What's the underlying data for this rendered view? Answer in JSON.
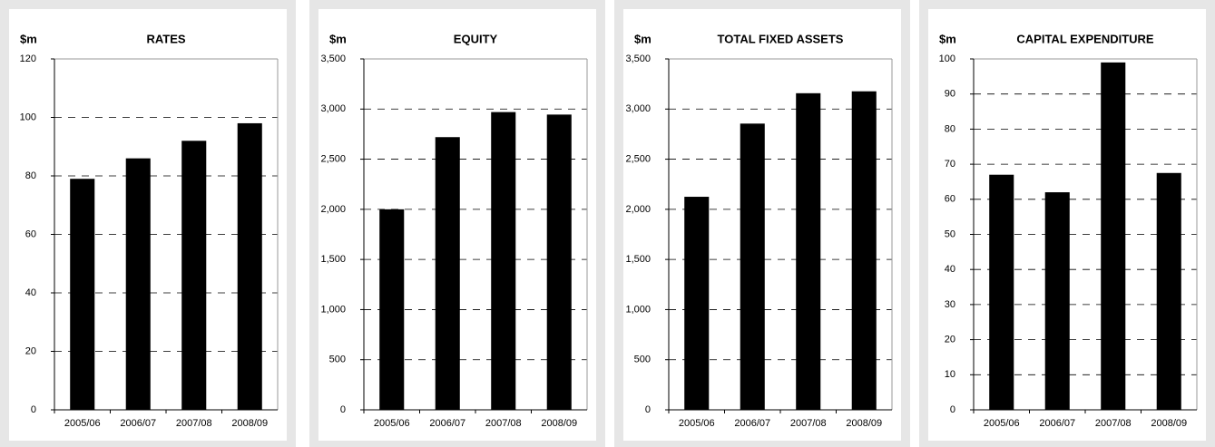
{
  "chart_data": [
    {
      "type": "bar",
      "title": "RATES",
      "ylabel": "$m",
      "categories": [
        "2005/06",
        "2006/07",
        "2007/08",
        "2008/09"
      ],
      "values": [
        79,
        86,
        92,
        98
      ],
      "color": "#000000",
      "ylim": [
        0,
        120
      ],
      "yticks": [
        0,
        20,
        40,
        60,
        80,
        100,
        120
      ],
      "grid": true
    },
    {
      "type": "bar",
      "title": "EQUITY",
      "ylabel": "$m",
      "categories": [
        "2005/06",
        "2006/07",
        "2007/08",
        "2008/09"
      ],
      "values": [
        2000,
        2720,
        2970,
        2945
      ],
      "color": "#000000",
      "ylim": [
        0,
        3500
      ],
      "yticks": [
        0,
        500,
        {
          "value": 1000,
          "label": "1,000"
        },
        {
          "value": 1500,
          "label": "1,500"
        },
        {
          "value": 2000,
          "label": "2,000"
        },
        {
          "value": 2500,
          "label": "2,500"
        },
        {
          "value": 3000,
          "label": "3,000"
        },
        {
          "value": 3500,
          "label": "3,500"
        }
      ],
      "grid": true
    },
    {
      "type": "bar",
      "title": "TOTAL FIXED ASSETS",
      "ylabel": "$m",
      "categories": [
        "2005/06",
        "2006/07",
        "2007/08",
        "2008/09"
      ],
      "values": [
        2125,
        2855,
        3158,
        3177
      ],
      "color": "#000000",
      "ylim": [
        0,
        3500
      ],
      "yticks": [
        0,
        500,
        {
          "value": 1000,
          "label": "1,000"
        },
        {
          "value": 1500,
          "label": "1,500"
        },
        {
          "value": 2000,
          "label": "2,000"
        },
        {
          "value": 2500,
          "label": "2,500"
        },
        {
          "value": 3000,
          "label": "3,000"
        },
        {
          "value": 3500,
          "label": "3,500"
        }
      ],
      "grid": true
    },
    {
      "type": "bar",
      "title": "CAPITAL EXPENDITURE",
      "ylabel": "$m",
      "categories": [
        "2005/06",
        "2006/07",
        "2007/08",
        "2008/09"
      ],
      "values": [
        67,
        62,
        99,
        67.5
      ],
      "color": "#000000",
      "ylim": [
        0,
        100
      ],
      "yticks": [
        0,
        10,
        20,
        30,
        40,
        50,
        60,
        70,
        80,
        90,
        100
      ],
      "grid": true
    }
  ]
}
